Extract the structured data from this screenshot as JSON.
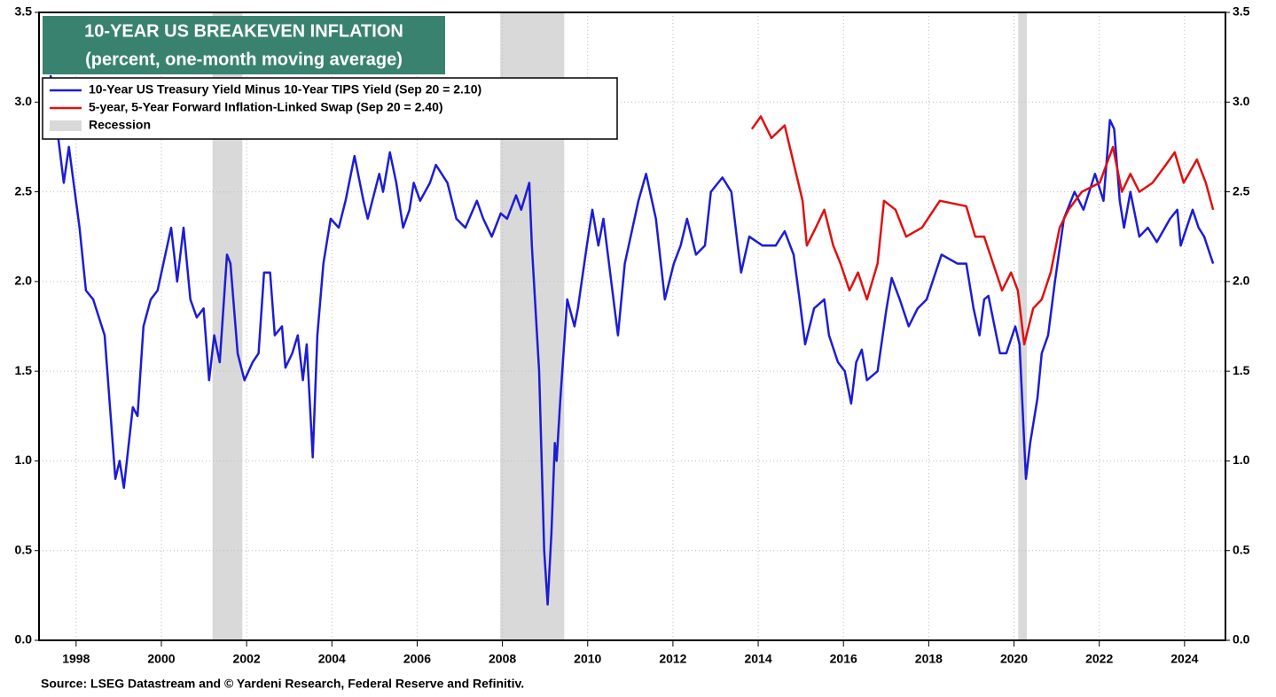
{
  "chart_data": {
    "type": "line",
    "title": [
      "10-YEAR US BREAKEVEN INFLATION",
      "(percent, one-month moving average)"
    ],
    "source": "Source: LSEG Datastream and © Yardeni Research, Federal Reserve and Refinitiv.",
    "xlim": [
      1997.13,
      2024.96
    ],
    "xticks": [
      1998,
      2000,
      2002,
      2004,
      2006,
      2008,
      2010,
      2012,
      2014,
      2016,
      2018,
      2020,
      2022,
      2024
    ],
    "ylim": [
      0,
      3.5
    ],
    "yticks": [
      {
        "value": 0,
        "label": "0.0"
      },
      {
        "value": 0.5,
        "label": "0.5"
      },
      {
        "value": 1,
        "label": "1.0"
      },
      {
        "value": 1.5,
        "label": "1.5"
      },
      {
        "value": 2,
        "label": "2.0"
      },
      {
        "value": 2.5,
        "label": "2.5"
      },
      {
        "value": 3,
        "label": "3.0"
      },
      {
        "value": 3.5,
        "label": "3.5"
      }
    ],
    "grid": true,
    "recessions": {
      "name": "Recession",
      "color": "#d9d9d9",
      "periods": [
        [
          2001.2,
          2001.9
        ],
        [
          2007.95,
          2009.45
        ],
        [
          2020.1,
          2020.3
        ]
      ]
    },
    "series": [
      {
        "name": "10-Year US Treasury Yield Minus 10-Year TIPS Yield (Sep 20 = 2.10)",
        "color": "#1c1cd6",
        "x": [
          1997.4,
          1997.71,
          1997.83,
          1998.08,
          1998.23,
          1998.4,
          1998.67,
          1998.92,
          1999.02,
          1999.12,
          1999.33,
          1999.44,
          1999.58,
          1999.75,
          1999.91,
          2000.23,
          2000.37,
          2000.52,
          2000.68,
          2000.83,
          2000.99,
          2001.12,
          2001.24,
          2001.37,
          2001.54,
          2001.62,
          2001.79,
          2001.95,
          2002.14,
          2002.28,
          2002.41,
          2002.55,
          2002.66,
          2002.83,
          2002.91,
          2003.07,
          2003.2,
          2003.32,
          2003.41,
          2003.55,
          2003.66,
          2003.8,
          2003.97,
          2004.16,
          2004.32,
          2004.53,
          2004.74,
          2004.84,
          2005.11,
          2005.2,
          2005.36,
          2005.51,
          2005.67,
          2005.82,
          2005.92,
          2006.07,
          2006.3,
          2006.44,
          2006.71,
          2006.92,
          2007.13,
          2007.4,
          2007.55,
          2007.75,
          2007.96,
          2008.11,
          2008.32,
          2008.44,
          2008.63,
          2008.69,
          2008.86,
          2008.98,
          2009.06,
          2009.15,
          2009.23,
          2009.27,
          2009.36,
          2009.52,
          2009.69,
          2009.77,
          2009.98,
          2010.11,
          2010.25,
          2010.37,
          2010.71,
          2010.87,
          2011.19,
          2011.37,
          2011.6,
          2011.81,
          2012.02,
          2012.18,
          2012.33,
          2012.54,
          2012.75,
          2012.89,
          2013.16,
          2013.37,
          2013.52,
          2013.6,
          2013.79,
          2014.1,
          2014.41,
          2014.62,
          2014.83,
          2014.97,
          2015.1,
          2015.31,
          2015.55,
          2015.66,
          2015.87,
          2016.03,
          2016.18,
          2016.3,
          2016.43,
          2016.55,
          2016.8,
          2017.01,
          2017.13,
          2017.32,
          2017.53,
          2017.74,
          2017.95,
          2018.3,
          2018.67,
          2018.88,
          2019.05,
          2019.19,
          2019.3,
          2019.4,
          2019.67,
          2019.82,
          2020.03,
          2020.13,
          2020.28,
          2020.38,
          2020.55,
          2020.65,
          2020.8,
          2020.96,
          2021.17,
          2021.42,
          2021.63,
          2021.9,
          2022.1,
          2022.25,
          2022.35,
          2022.48,
          2022.58,
          2022.73,
          2022.94,
          2023.14,
          2023.35,
          2023.66,
          2023.83,
          2023.91,
          2024.19,
          2024.33,
          2024.46,
          2024.67
        ],
        "values": [
          3.15,
          2.55,
          2.75,
          2.3,
          1.95,
          1.9,
          1.7,
          0.9,
          1.0,
          0.85,
          1.3,
          1.25,
          1.75,
          1.9,
          1.95,
          2.3,
          2.0,
          2.3,
          1.9,
          1.8,
          1.85,
          1.45,
          1.7,
          1.55,
          2.15,
          2.1,
          1.6,
          1.45,
          1.55,
          1.6,
          2.05,
          2.05,
          1.7,
          1.75,
          1.52,
          1.6,
          1.7,
          1.45,
          1.65,
          1.02,
          1.7,
          2.1,
          2.35,
          2.3,
          2.45,
          2.7,
          2.45,
          2.35,
          2.6,
          2.5,
          2.72,
          2.55,
          2.3,
          2.4,
          2.55,
          2.45,
          2.55,
          2.65,
          2.55,
          2.35,
          2.3,
          2.45,
          2.35,
          2.25,
          2.38,
          2.35,
          2.48,
          2.4,
          2.55,
          2.2,
          1.5,
          0.5,
          0.2,
          0.6,
          1.1,
          1.0,
          1.35,
          1.9,
          1.75,
          1.85,
          2.2,
          2.4,
          2.2,
          2.35,
          1.7,
          2.1,
          2.45,
          2.6,
          2.35,
          1.9,
          2.1,
          2.2,
          2.35,
          2.15,
          2.2,
          2.5,
          2.58,
          2.5,
          2.2,
          2.05,
          2.25,
          2.2,
          2.2,
          2.28,
          2.15,
          1.9,
          1.65,
          1.85,
          1.9,
          1.7,
          1.55,
          1.5,
          1.32,
          1.55,
          1.62,
          1.45,
          1.5,
          1.85,
          2.02,
          1.9,
          1.75,
          1.85,
          1.9,
          2.15,
          2.1,
          2.1,
          1.85,
          1.7,
          1.9,
          1.92,
          1.6,
          1.6,
          1.75,
          1.65,
          0.9,
          1.1,
          1.35,
          1.6,
          1.7,
          2.0,
          2.35,
          2.5,
          2.4,
          2.6,
          2.45,
          2.9,
          2.85,
          2.45,
          2.3,
          2.5,
          2.25,
          2.3,
          2.22,
          2.35,
          2.4,
          2.2,
          2.4,
          2.3,
          2.25,
          2.1
        ]
      },
      {
        "name": "5-year, 5-Year Forward Inflation-Linked Swap (Sep 20 = 2.40)",
        "color": "#e01010",
        "x": [
          2013.85,
          2014.06,
          2014.31,
          2014.62,
          2014.79,
          2015.04,
          2015.14,
          2015.35,
          2015.55,
          2015.76,
          2015.93,
          2016.14,
          2016.34,
          2016.55,
          2016.8,
          2016.95,
          2017.22,
          2017.47,
          2017.84,
          2018.26,
          2018.88,
          2019.09,
          2019.3,
          2019.51,
          2019.72,
          2019.93,
          2020.09,
          2020.24,
          2020.45,
          2020.65,
          2020.86,
          2021.07,
          2021.28,
          2021.59,
          2022.01,
          2022.32,
          2022.53,
          2022.73,
          2022.94,
          2023.25,
          2023.56,
          2023.77,
          2023.98,
          2024.29,
          2024.5,
          2024.67
        ],
        "values": [
          2.85,
          2.92,
          2.8,
          2.87,
          2.7,
          2.45,
          2.2,
          2.3,
          2.4,
          2.2,
          2.1,
          1.95,
          2.05,
          1.9,
          2.1,
          2.45,
          2.4,
          2.25,
          2.3,
          2.45,
          2.42,
          2.25,
          2.25,
          2.1,
          1.95,
          2.05,
          1.95,
          1.65,
          1.85,
          1.9,
          2.05,
          2.3,
          2.4,
          2.5,
          2.55,
          2.75,
          2.5,
          2.6,
          2.5,
          2.55,
          2.65,
          2.72,
          2.55,
          2.68,
          2.55,
          2.4
        ]
      }
    ]
  }
}
